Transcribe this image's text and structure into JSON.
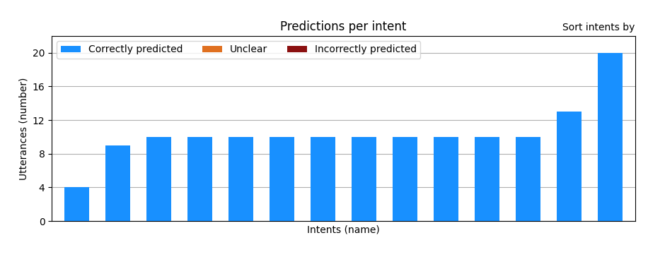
{
  "chart_data": {
    "type": "bar",
    "title": "Predictions per intent",
    "xlabel": "Intents (name)",
    "ylabel": "Utterances (number)",
    "categories": [
      null,
      null,
      null,
      null,
      null,
      null,
      null,
      null,
      null,
      null,
      null,
      null,
      null,
      null
    ],
    "series": [
      {
        "name": "Correctly predicted",
        "color": "#1890FF",
        "values": [
          4,
          9,
          10,
          10,
          10,
          10,
          10,
          10,
          10,
          10,
          10,
          10,
          13,
          20
        ]
      },
      {
        "name": "Unclear",
        "color": "#E07020",
        "values": [
          null,
          null,
          null,
          null,
          null,
          null,
          null,
          null,
          null,
          null,
          null,
          null,
          null,
          null
        ]
      },
      {
        "name": "Incorrectly predicted",
        "color": "#8B1010",
        "values": [
          null,
          null,
          null,
          null,
          null,
          null,
          null,
          null,
          null,
          null,
          null,
          null,
          null,
          null
        ]
      }
    ],
    "stacked": true,
    "ylim": [
      0,
      22
    ],
    "yticks": [
      0,
      4,
      8,
      12,
      16,
      20
    ],
    "grid": true,
    "legend": "upper left",
    "annotations": [
      {
        "text": "Sort intents by"
      }
    ]
  }
}
